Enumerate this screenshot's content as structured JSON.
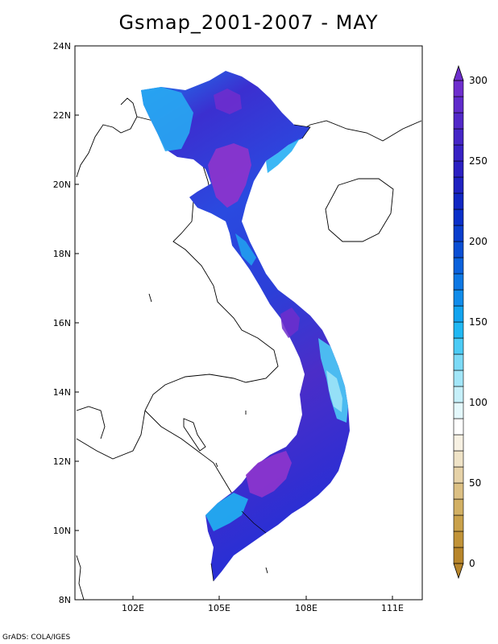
{
  "title": "Gsmap_2001-2007 - MAY",
  "credit": "GrADS: COLA/IGES",
  "axes": {
    "lon_ticks": [
      "102E",
      "105E",
      "108E",
      "111E"
    ],
    "lat_ticks": [
      "8N",
      "10N",
      "12N",
      "14N",
      "16N",
      "18N",
      "20N",
      "22N",
      "24N"
    ]
  },
  "colorbar": {
    "min": 0,
    "max": 300,
    "labels": [
      "0",
      "50",
      "100",
      "150",
      "200",
      "250",
      "300"
    ],
    "colors": [
      "#b8862b",
      "#c19338",
      "#c9a14b",
      "#d2b064",
      "#dcc084",
      "#e6d2a8",
      "#efe3c7",
      "#f7f1e3",
      "#ffffff",
      "#e4f8fc",
      "#c6f0fa",
      "#a2e6f8",
      "#7cdaf6",
      "#4ccbf5",
      "#20b8f3",
      "#12a4ef",
      "#108cea",
      "#0d78e4",
      "#0b62dc",
      "#0a4fd4",
      "#0a3ecd",
      "#0a30c9",
      "#1127c3",
      "#1f22c1",
      "#2b20c2",
      "#3822c4",
      "#4525c6",
      "#5228c8",
      "#602bcb",
      "#6e2ecd"
    ],
    "arrow_low": "#b8862b",
    "arrow_high": "#6e2ecd"
  }
}
